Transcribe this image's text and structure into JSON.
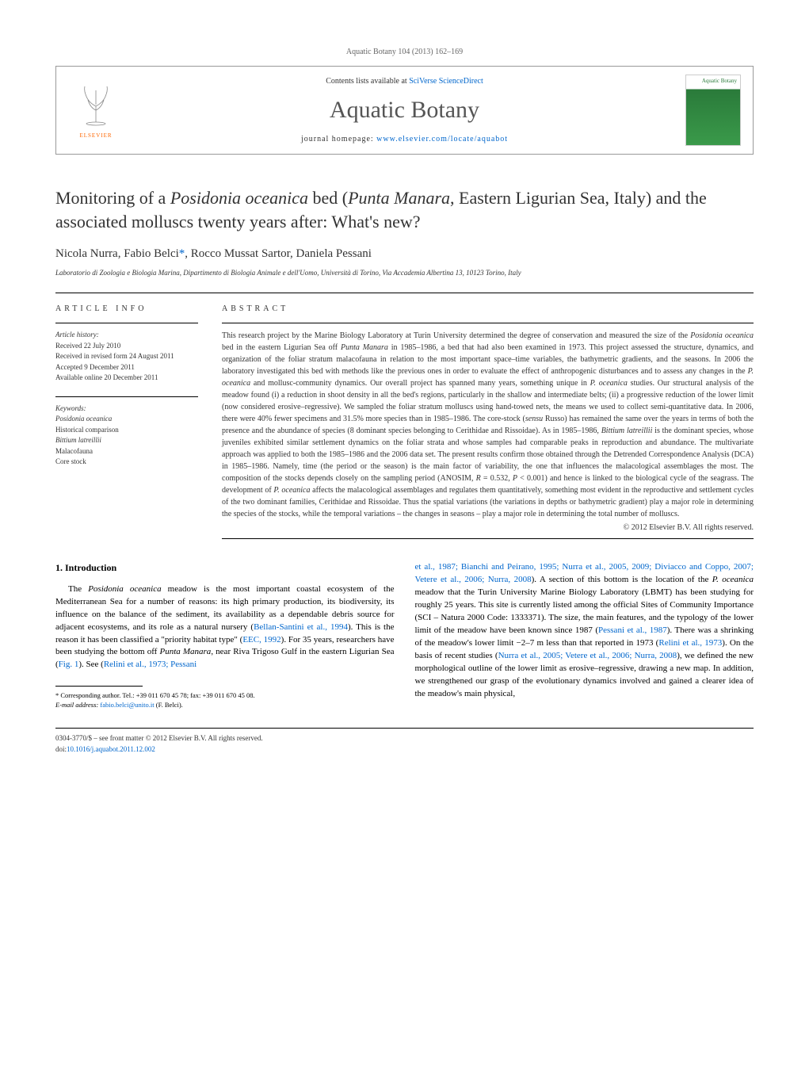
{
  "journal_ref": "Aquatic Botany 104 (2013) 162–169",
  "header": {
    "elsevier_label": "ELSEVIER",
    "contents_prefix": "Contents lists available at ",
    "contents_link": "SciVerse ScienceDirect",
    "journal_name": "Aquatic Botany",
    "homepage_prefix": "journal homepage: ",
    "homepage_link": "www.elsevier.com/locate/aquabot",
    "cover_label": "Aquatic\nBotany"
  },
  "title_parts": {
    "p1": "Monitoring of a ",
    "i1": "Posidonia oceanica",
    "p2": " bed (",
    "i2": "Punta Manara",
    "p3": ", Eastern Ligurian Sea, Italy) and the associated molluscs twenty years after: What's new?"
  },
  "authors": {
    "a1": "Nicola Nurra",
    "a2": "Fabio Belci",
    "corr_mark": "*",
    "a3": "Rocco Mussat Sartor",
    "a4": "Daniela Pessani"
  },
  "affiliation": "Laboratorio di Zoologia e Biologia Marina, Dipartimento di Biologia Animale e dell'Uomo, Università di Torino, Via Accademia Albertina 13, 10123 Torino, Italy",
  "article_info": {
    "label": "ARTICLE INFO",
    "history_h": "Article history:",
    "received": "Received 22 July 2010",
    "revised": "Received in revised form 24 August 2011",
    "accepted": "Accepted 9 December 2011",
    "online": "Available online 20 December 2011",
    "keywords_h": "Keywords:",
    "kw1": "Posidonia oceanica",
    "kw2": "Historical comparison",
    "kw3": "Bittium latreillii",
    "kw4": "Malacofauna",
    "kw5": "Core stock"
  },
  "abstract": {
    "label": "ABSTRACT",
    "text_parts": [
      {
        "t": "This research project by the Marine Biology Laboratory at Turin University determined the degree of conservation and measured the size of the "
      },
      {
        "t": "Posidonia oceanica",
        "i": true
      },
      {
        "t": " bed in the eastern Ligurian Sea off "
      },
      {
        "t": "Punta Manara",
        "i": true
      },
      {
        "t": " in 1985–1986, a bed that had also been examined in 1973. This project assessed the structure, dynamics, and organization of the foliar stratum malacofauna in relation to the most important space–time variables, the bathymetric gradients, and the seasons. In 2006 the laboratory investigated this bed with methods like the previous ones in order to evaluate the effect of anthropogenic disturbances and to assess any changes in the "
      },
      {
        "t": "P. oceanica",
        "i": true
      },
      {
        "t": " and mollusc-community dynamics. Our overall project has spanned many years, something unique in "
      },
      {
        "t": "P. oceanica",
        "i": true
      },
      {
        "t": " studies. Our structural analysis of the meadow found (i) a reduction in shoot density in all the bed's regions, particularly in the shallow and intermediate belts; (ii) a progressive reduction of the lower limit (now considered erosive–regressive). We sampled the foliar stratum molluscs using hand-towed nets, the means we used to collect semi-quantitative data. In 2006, there were 40% fewer specimens and 31.5% more species than in 1985–1986. The core-stock ("
      },
      {
        "t": "sensu",
        "i": true
      },
      {
        "t": " Russo) has remained the same over the years in terms of both the presence and the abundance of species (8 dominant species belonging to Cerithidae and Rissoidae). As in 1985–1986, "
      },
      {
        "t": "Bittium latreillii",
        "i": true
      },
      {
        "t": " is the dominant species, whose juveniles exhibited similar settlement dynamics on the foliar strata and whose samples had comparable peaks in reproduction and abundance. The multivariate approach was applied to both the 1985–1986 and the 2006 data set. The present results confirm those obtained through the Detrended Correspondence Analysis (DCA) in 1985–1986. Namely, time (the period or the season) is the main factor of variability, the one that influences the malacological assemblages the most. The composition of the stocks depends closely on the sampling period (ANOSIM, "
      },
      {
        "t": "R",
        "i": true
      },
      {
        "t": " = 0.532, "
      },
      {
        "t": "P",
        "i": true
      },
      {
        "t": " < 0.001) and hence is linked to the biological cycle of the seagrass. The development of "
      },
      {
        "t": "P. oceanica",
        "i": true
      },
      {
        "t": " affects the malacological assemblages and regulates them quantitatively, something most evident in the reproductive and settlement cycles of the two dominant families, Cerithidae and Rissoidae. Thus the spatial variations (the variations in depths or bathymetric gradient) play a major role in determining the species of the stocks, while the temporal variations – the changes in seasons – play a major role in determining the total number of molluscs."
      }
    ],
    "copyright": "© 2012 Elsevier B.V. All rights reserved."
  },
  "intro": {
    "heading": "1. Introduction",
    "left_parts": [
      {
        "t": "The "
      },
      {
        "t": "Posidonia oceanica",
        "i": true
      },
      {
        "t": " meadow is the most important coastal ecosystem of the Mediterranean Sea for a number of reasons: its high primary production, its biodiversity, its influence on the balance of the sediment, its availability as a dependable debris source for adjacent ecosystems, and its role as a natural nursery ("
      },
      {
        "t": "Bellan-Santini et al., 1994",
        "a": true
      },
      {
        "t": "). This is the reason it has been classified a \"priority habitat type\" ("
      },
      {
        "t": "EEC, 1992",
        "a": true
      },
      {
        "t": "). For 35 years, researchers have been studying the bottom off "
      },
      {
        "t": "Punta Manara",
        "i": true
      },
      {
        "t": ", near Riva Trigoso Gulf in the eastern Ligurian Sea ("
      },
      {
        "t": "Fig. 1",
        "a": true
      },
      {
        "t": "). See ("
      },
      {
        "t": "Relini et al., 1973; Pessani",
        "a": true
      }
    ],
    "right_parts": [
      {
        "t": "et al., 1987; Bianchi and Peirano, 1995; Nurra et al., 2005, 2009; Diviacco and Coppo, 2007; Vetere et al., 2006; Nurra, 2008",
        "a": true
      },
      {
        "t": "). A section of this bottom is the location of the "
      },
      {
        "t": "P. oceanica",
        "i": true
      },
      {
        "t": " meadow that the Turin University Marine Biology Laboratory (LBMT) has been studying for roughly 25 years. This site is currently listed among the official Sites of Community Importance (SCI – Natura 2000 Code: 1333371). The size, the main features, and the typology of the lower limit of the meadow have been known since 1987 ("
      },
      {
        "t": "Pessani et al., 1987",
        "a": true
      },
      {
        "t": "). There was a shrinking of the meadow's lower limit −2–7 m less than that reported in 1973 ("
      },
      {
        "t": "Relini et al., 1973",
        "a": true
      },
      {
        "t": "). On the basis of recent studies ("
      },
      {
        "t": "Nurra et al., 2005; Vetere et al., 2006; Nurra, 2008",
        "a": true
      },
      {
        "t": "), we defined the new morphological outline of the lower limit as erosive–regressive, drawing a new map. In addition, we strengthened our grasp of the evolutionary dynamics involved and gained a clearer idea of the meadow's main physical,"
      }
    ]
  },
  "footnote": {
    "corr_label": "* Corresponding author. Tel.: +39 011 670 45 78; fax: +39 011 670 45 08.",
    "email_label": "E-mail address:",
    "email": "fabio.belci@unito.it",
    "email_who": "(F. Belci)."
  },
  "footer": {
    "line1": "0304-3770/$ – see front matter © 2012 Elsevier B.V. All rights reserved.",
    "doi_prefix": "doi:",
    "doi": "10.1016/j.aquabot.2011.12.002"
  },
  "colors": {
    "link": "#0066cc",
    "text": "#333333",
    "elsevier_orange": "#ff6600",
    "cover_green": "#2a7a3a"
  }
}
